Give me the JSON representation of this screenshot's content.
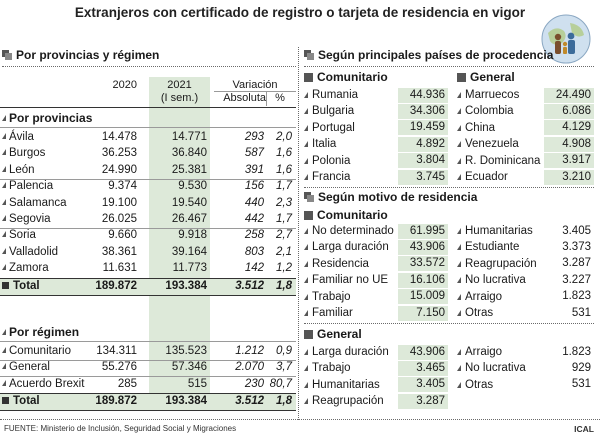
{
  "title": "Extranjeros con certificado de registro o tarjeta de residencia en vigor",
  "left": {
    "section_title": "Por provincias y régimen",
    "col_2020": "2020",
    "col_2021": "2021",
    "col_2021_sub": "(I sem.)",
    "col_var": "Variación",
    "col_abs": "Absoluta",
    "col_pct": "%",
    "provincias_title": "Por provincias",
    "provincias": [
      {
        "name": "Ávila",
        "y2020": "14.478",
        "y2021": "14.771",
        "abs": "293",
        "pct": "2,0"
      },
      {
        "name": "Burgos",
        "y2020": "36.253",
        "y2021": "36.840",
        "abs": "587",
        "pct": "1,6"
      },
      {
        "name": "León",
        "y2020": "24.990",
        "y2021": "25.381",
        "abs": "391",
        "pct": "1,6"
      },
      {
        "name": "Palencia",
        "y2020": "9.374",
        "y2021": "9.530",
        "abs": "156",
        "pct": "1,7"
      },
      {
        "name": "Salamanca",
        "y2020": "19.100",
        "y2021": "19.540",
        "abs": "440",
        "pct": "2,3"
      },
      {
        "name": "Segovia",
        "y2020": "26.025",
        "y2021": "26.467",
        "abs": "442",
        "pct": "1,7"
      },
      {
        "name": "Soria",
        "y2020": "9.660",
        "y2021": "9.918",
        "abs": "258",
        "pct": "2,7"
      },
      {
        "name": "Valladolid",
        "y2020": "38.361",
        "y2021": "39.164",
        "abs": "803",
        "pct": "2,1"
      },
      {
        "name": "Zamora",
        "y2020": "11.631",
        "y2021": "11.773",
        "abs": "142",
        "pct": "1,2"
      }
    ],
    "total1": {
      "name": "Total",
      "y2020": "189.872",
      "y2021": "193.384",
      "abs": "3.512",
      "pct": "1,8"
    },
    "regimen_title": "Por régimen",
    "regimen": [
      {
        "name": "Comunitario",
        "y2020": "134.311",
        "y2021": "135.523",
        "abs": "1.212",
        "pct": "0,9"
      },
      {
        "name": "General",
        "y2020": "55.276",
        "y2021": "57.346",
        "abs": "2.070",
        "pct": "3,7"
      },
      {
        "name": "Acuerdo Brexit",
        "y2020": "285",
        "y2021": "515",
        "abs": "230",
        "pct": "80,7"
      }
    ],
    "total2": {
      "name": "Total",
      "y2020": "189.872",
      "y2021": "193.384",
      "abs": "3.512",
      "pct": "1,8"
    }
  },
  "paises": {
    "section_title": "Según principales países de procedencia",
    "comunitario_title": "Comunitario",
    "comunitario": [
      {
        "name": "Rumania",
        "value": "44.936"
      },
      {
        "name": "Bulgaria",
        "value": "34.306"
      },
      {
        "name": "Portugal",
        "value": "19.459"
      },
      {
        "name": "Italia",
        "value": "4.892"
      },
      {
        "name": "Polonia",
        "value": "3.804"
      },
      {
        "name": "Francia",
        "value": "3.745"
      }
    ],
    "general_title": "General",
    "general": [
      {
        "name": "Marruecos",
        "value": "24.490"
      },
      {
        "name": "Colombia",
        "value": "6.086"
      },
      {
        "name": "China",
        "value": "4.129"
      },
      {
        "name": "Venezuela",
        "value": "4.908"
      },
      {
        "name": "R. Dominicana",
        "value": "3.917"
      },
      {
        "name": "Ecuador",
        "value": "3.210"
      }
    ]
  },
  "motivo": {
    "section_title": "Según motivo de residencia",
    "comunitario_title": "Comunitario",
    "comunitario_a": [
      {
        "name": "No determinado",
        "value": "61.995"
      },
      {
        "name": "Larga duración",
        "value": "43.906"
      },
      {
        "name": "Residencia",
        "value": "33.572"
      },
      {
        "name": "Familiar no UE",
        "value": "16.106"
      },
      {
        "name": "Trabajo",
        "value": "15.009"
      },
      {
        "name": "Familiar",
        "value": "7.150"
      }
    ],
    "comunitario_b": [
      {
        "name": "Humanitarias",
        "value": "3.405"
      },
      {
        "name": "Estudiante",
        "value": "3.373"
      },
      {
        "name": "Reagrupación",
        "value": "3.287"
      },
      {
        "name": "No lucrativa",
        "value": "3.227"
      },
      {
        "name": "Arraigo",
        "value": "1.823"
      },
      {
        "name": "Otras",
        "value": "531"
      }
    ],
    "general_title": "General",
    "general_a": [
      {
        "name": "Larga duración",
        "value": "43.906"
      },
      {
        "name": "Trabajo",
        "value": "3.465"
      },
      {
        "name": "Humanitarias",
        "value": "3.405"
      },
      {
        "name": "Reagrupación",
        "value": "3.287"
      }
    ],
    "general_b": [
      {
        "name": "Arraigo",
        "value": "1.823"
      },
      {
        "name": "No lucrativa",
        "value": "929"
      },
      {
        "name": "Otras",
        "value": "531"
      }
    ]
  },
  "footer": {
    "source": "FUENTE: Ministerio de Inclusión, Seguridad Social y Migraciones",
    "credit": "ICAL"
  },
  "colors": {
    "highlight": "#dde9d9",
    "bullet": "#555555",
    "text": "#1a1a1a"
  },
  "icons": {
    "logo": "family-globe-icon",
    "section": "square-bullet-icon",
    "item": "triangle-bullet-icon"
  }
}
